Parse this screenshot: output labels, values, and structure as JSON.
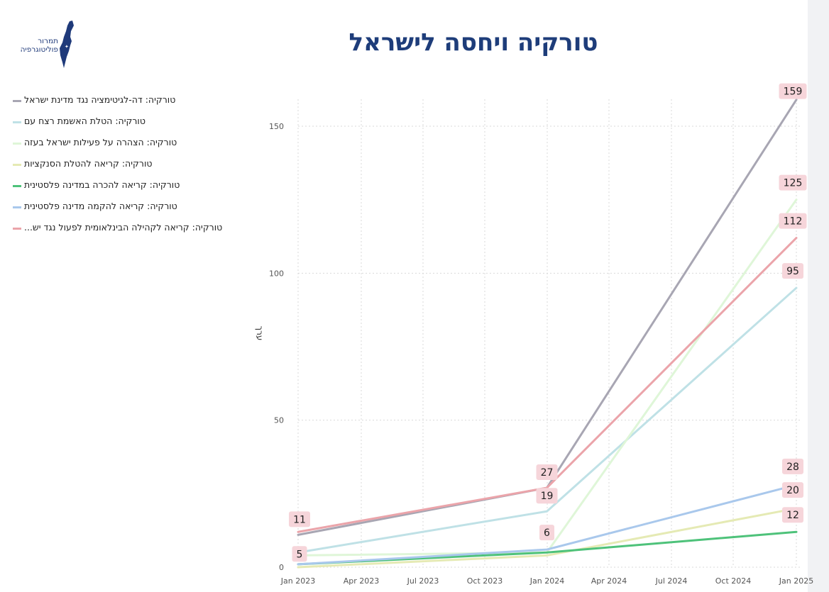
{
  "header": {
    "title": "טורקיה ויחסה לישראל",
    "logo_line1": "תמרור",
    "logo_line2": "פוליטוגרפיה"
  },
  "colors": {
    "title": "#1e3d7a",
    "grid": "#d9d9d9"
  },
  "chart_data": {
    "type": "line",
    "title": "טורקיה ויחסה לישראל",
    "ylabel": "ערך",
    "xlabel": "",
    "x": [
      "2023-01-01",
      "2024-01-01",
      "2025-01-01"
    ],
    "x_ticks": [
      "Jan 2023",
      "Apr 2023",
      "Jul 2023",
      "Oct 2023",
      "Jan 2024",
      "Apr 2024",
      "Jul 2024",
      "Oct 2024",
      "Jan 2025"
    ],
    "y_ticks": [
      0,
      50,
      100,
      150
    ],
    "ylim": [
      0,
      162
    ],
    "legend_position": "left",
    "grid": true,
    "series": [
      {
        "name": "טורקיה: דה-לגיטימציה נגד מדינת ישראל",
        "color": "#a8a6b3",
        "values": [
          11,
          27,
          159
        ]
      },
      {
        "name": "טורקיה: הטלת האשמת רצח עם",
        "color": "#bfe1e6",
        "values": [
          5,
          19,
          95
        ]
      },
      {
        "name": "טורקיה: הצהרה על פעילות ישראל בעזה",
        "color": "#dff6d8",
        "values": [
          4,
          5,
          125
        ]
      },
      {
        "name": "טורקיה: קריאה להטלת הסנקציות",
        "color": "#e5eab4",
        "values": [
          0,
          4,
          20
        ]
      },
      {
        "name": "טורקיה: קריאה להכרה במדינה פלסטינית",
        "color": "#4ec27a",
        "values": [
          1,
          5,
          12
        ]
      },
      {
        "name": "טורקיה: קריאה להקמה מדינה פלסטינית",
        "color": "#a9c8ec",
        "values": [
          1,
          6,
          28
        ]
      },
      {
        "name": "טורקיה: קריאה לקהילה הבינלאומית לפעול נגד יש...",
        "color": "#eba4aa",
        "values": [
          12,
          27,
          112
        ]
      }
    ],
    "data_labels": [
      "11",
      "5",
      "27",
      "19",
      "6",
      "159",
      "125",
      "112",
      "95",
      "28",
      "20",
      "12"
    ]
  }
}
